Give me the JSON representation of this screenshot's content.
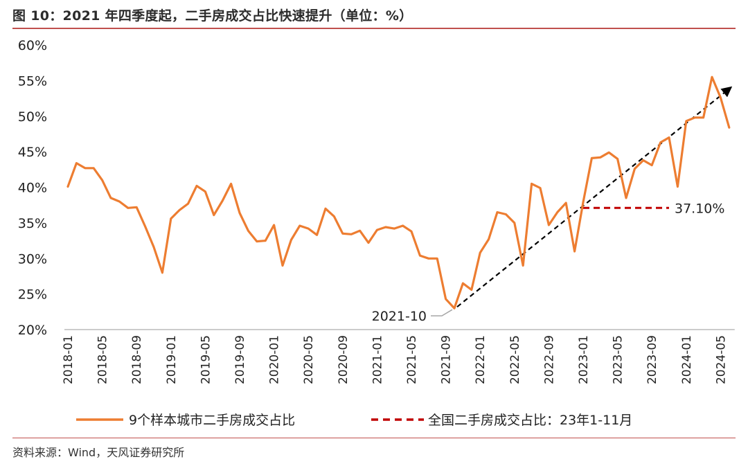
{
  "figure_title": "图 10：2021 年四季度起，二手房成交占比快速提升（单位：%）",
  "source": "资料来源：Wind，天风证券研究所",
  "colors": {
    "series_line": "#ed7d31",
    "national_line": "#c00000",
    "trend_arrow": "#000000",
    "accent_rule": "#c0504d"
  },
  "chart_data": {
    "type": "line",
    "ylim": [
      20,
      60
    ],
    "y_ticks": [
      "20%",
      "25%",
      "30%",
      "35%",
      "40%",
      "45%",
      "50%",
      "55%",
      "60%"
    ],
    "x_ticks": [
      "2018-01",
      "2018-05",
      "2018-09",
      "2019-01",
      "2019-05",
      "2019-09",
      "2020-01",
      "2020-05",
      "2020-09",
      "2021-01",
      "2021-05",
      "2021-09",
      "2022-01",
      "2022-05",
      "2022-09",
      "2023-01",
      "2023-05",
      "2023-09",
      "2024-01",
      "2024-05"
    ],
    "x_start": "2018-01",
    "grid": false,
    "legend": "bottom",
    "series": [
      {
        "name": "9个样本城市二手房成交占比",
        "values": [
          40.1,
          43.4,
          42.7,
          42.7,
          41.0,
          38.5,
          38.0,
          37.1,
          37.2,
          34.5,
          31.6,
          28.0,
          35.6,
          36.8,
          37.7,
          40.2,
          39.4,
          36.1,
          38.1,
          40.5,
          36.4,
          33.9,
          32.4,
          32.5,
          34.7,
          29.0,
          32.6,
          34.6,
          34.2,
          33.3,
          37.0,
          35.9,
          33.5,
          33.4,
          33.9,
          32.2,
          34.0,
          34.4,
          34.2,
          34.6,
          33.8,
          30.4,
          30.0,
          30.0,
          24.3,
          23.0,
          26.5,
          25.6,
          30.8,
          32.7,
          36.5,
          36.2,
          35.0,
          29.0,
          40.5,
          39.9,
          34.7,
          36.5,
          37.8,
          31.0,
          37.9,
          44.1,
          44.2,
          44.9,
          44.0,
          38.5,
          42.6,
          43.8,
          43.1,
          46.3,
          47.0,
          40.1,
          49.3,
          49.8,
          49.8,
          55.5,
          52.6,
          48.4
        ]
      },
      {
        "name": "全国二手房成交占比：23年1-11月",
        "value": 37.1,
        "from": "2023-01",
        "to": "2023-11",
        "label": "37.10%"
      }
    ],
    "annotations": [
      {
        "text": "2021-10",
        "at": "2021-10"
      }
    ],
    "trend_arrow": {
      "from": [
        "2021-10",
        23.0
      ],
      "to": [
        "2024-06",
        54.0
      ]
    }
  }
}
